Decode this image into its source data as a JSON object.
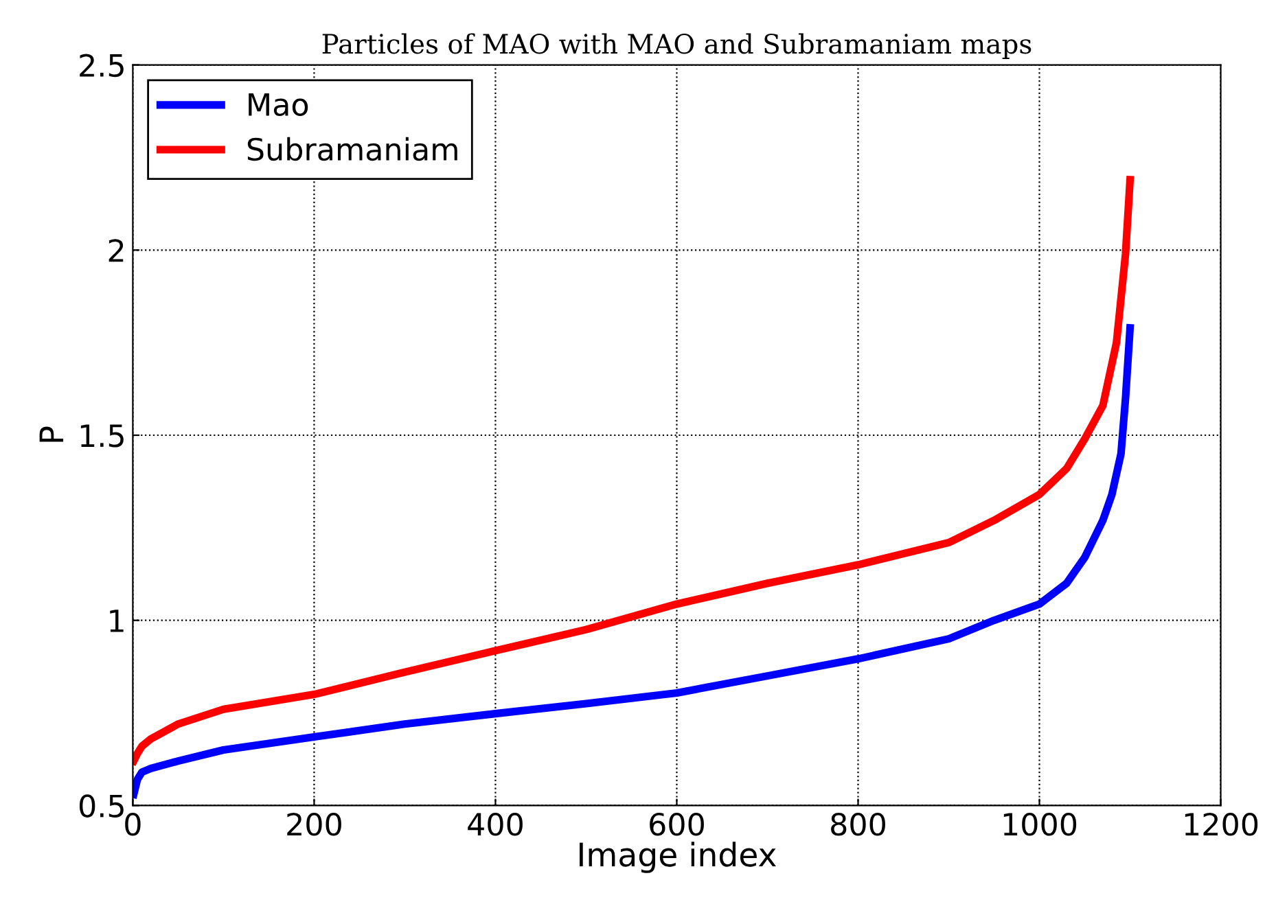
{
  "chart_data": {
    "type": "line",
    "title": "Particles of MAO with MAO and Subramaniam maps",
    "xlabel": "Image index",
    "ylabel": "P",
    "xlim": [
      0,
      1200
    ],
    "xticks": [
      0,
      200,
      400,
      600,
      800,
      1000,
      1200
    ],
    "ylim": [
      0.5,
      2.5
    ],
    "yticks": [
      0.5,
      1,
      1.5,
      2,
      2.5
    ],
    "grid": true,
    "legend": "top left",
    "line_style": "solid",
    "marker": "none",
    "series": [
      {
        "name": "Mao",
        "color": "#0000ff",
        "x": [
          1,
          5,
          10,
          20,
          50,
          100,
          200,
          300,
          400,
          500,
          600,
          700,
          800,
          900,
          950,
          1000,
          1030,
          1050,
          1070,
          1080,
          1090,
          1095,
          1100
        ],
        "values": [
          0.53,
          0.57,
          0.59,
          0.6,
          0.62,
          0.65,
          0.685,
          0.72,
          0.748,
          0.775,
          0.804,
          0.85,
          0.896,
          0.95,
          1.0,
          1.044,
          1.1,
          1.17,
          1.27,
          1.34,
          1.45,
          1.6,
          1.79
        ]
      },
      {
        "name": "Subramaniam",
        "color": "#ff0000",
        "x": [
          1,
          5,
          10,
          20,
          50,
          100,
          200,
          300,
          400,
          500,
          600,
          700,
          800,
          900,
          950,
          1000,
          1030,
          1050,
          1070,
          1085,
          1095,
          1100
        ],
        "values": [
          0.62,
          0.64,
          0.66,
          0.68,
          0.72,
          0.76,
          0.8,
          0.86,
          0.918,
          0.975,
          1.044,
          1.1,
          1.15,
          1.21,
          1.27,
          1.34,
          1.41,
          1.49,
          1.58,
          1.75,
          1.99,
          2.19
        ]
      }
    ]
  }
}
